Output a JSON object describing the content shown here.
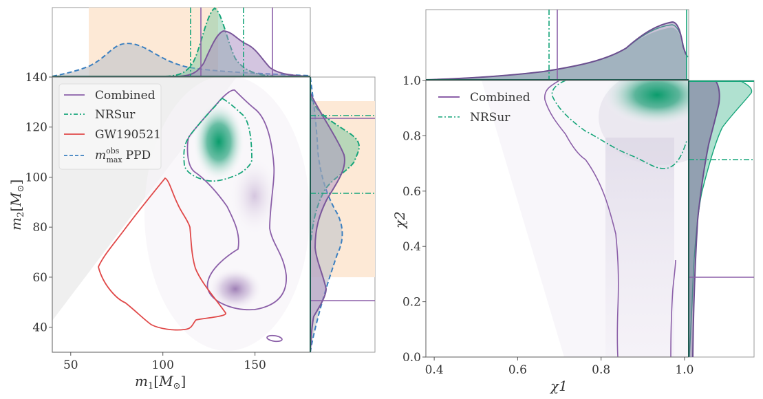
{
  "colors": {
    "combined": "#8b5fa8",
    "nrsur": "#17a57a",
    "gw190521": "#e04848",
    "mmax_ppd": "#3a7fc0",
    "band": "#fde9d6",
    "excluded": "#ececec"
  },
  "chart_data": [
    {
      "type": "scatter",
      "subtype": "corner-kde",
      "panel": "left",
      "xlabel": "m_1[M_⊙]",
      "ylabel": "m_2[M_⊙]",
      "xlim": [
        40,
        180
      ],
      "ylim": [
        30,
        140
      ],
      "xticks": [
        50,
        100,
        150
      ],
      "xtick_labels": [
        "50",
        "100",
        "150"
      ],
      "yticks": [
        40,
        60,
        80,
        100,
        120,
        140
      ],
      "ytick_labels": [
        "40",
        "60",
        "80",
        "100",
        "120",
        "140"
      ],
      "legend": {
        "placement": "top-left",
        "entries": [
          {
            "label": "Combined",
            "style": "solid",
            "color_key": "combined"
          },
          {
            "label": "NRSur",
            "style": "dashdot",
            "color_key": "nrsur"
          },
          {
            "label": "GW190521",
            "style": "solid",
            "color_key": "gw190521"
          },
          {
            "label_main": "m",
            "label_sup": "obs",
            "label_sub": "max",
            "label_suffix": "PPD",
            "style": "dashed",
            "color_key": "mmax_ppd"
          }
        ]
      },
      "band_m1": [
        60,
        130
      ],
      "band_m2": [
        60,
        130
      ],
      "series": [
        {
          "name": "Combined",
          "density_peaks": [
            {
              "m1": 150,
              "m2": 92
            },
            {
              "m1": 140,
              "m2": 55
            }
          ],
          "m1_interval": [
            121,
            160
          ],
          "m2_interval": [
            50.5,
            123.5
          ],
          "m1_peak": 133,
          "m2_peak": 106
        },
        {
          "name": "NRSur",
          "density_peaks": [
            {
              "m1": 128,
              "m2": 116
            }
          ],
          "m1_interval": [
            115,
            144
          ],
          "m2_interval": [
            93.5,
            124.5
          ],
          "m1_peak": 128,
          "m2_peak": 112
        },
        {
          "name": "GW190521",
          "contour_only": true
        },
        {
          "name": "m_max^obs PPD",
          "m1_peak": 77,
          "m2_peak": 78
        }
      ]
    },
    {
      "type": "scatter",
      "subtype": "corner-kde",
      "panel": "right",
      "xlabel": "χ1",
      "ylabel": "χ2",
      "xlim": [
        0.38,
        1.01
      ],
      "ylim": [
        0.0,
        1.0
      ],
      "xticks": [
        0.4,
        0.6,
        0.8,
        1.0
      ],
      "xtick_labels": [
        "0.4",
        "0.6",
        "0.8",
        "1.0"
      ],
      "yticks": [
        0.0,
        0.2,
        0.4,
        0.6,
        0.8,
        1.0
      ],
      "ytick_labels": [
        "0.0",
        "0.2",
        "0.4",
        "0.6",
        "0.8",
        "1.0"
      ],
      "legend": {
        "placement": "top-left",
        "entries": [
          {
            "label": "Combined",
            "style": "solid",
            "color_key": "combined"
          },
          {
            "label": "NRSur",
            "style": "dashdot",
            "color_key": "nrsur"
          }
        ]
      },
      "series": [
        {
          "name": "Combined",
          "density_peaks": [
            {
              "chi1": 0.93,
              "chi2": 0.3
            }
          ],
          "chi1_interval": [
            0.71,
            1.0
          ],
          "chi2_interval": [
            0.29,
            1.0
          ],
          "chi1_peak": 0.95
        },
        {
          "name": "NRSur",
          "density_peaks": [
            {
              "chi1": 0.95,
              "chi2": 0.95
            }
          ],
          "chi1_interval": [
            0.69,
            1.0
          ],
          "chi2_interval": [
            0.71,
            1.0
          ],
          "chi1_peak": 0.95,
          "chi2_peak": 0.97
        }
      ]
    }
  ]
}
